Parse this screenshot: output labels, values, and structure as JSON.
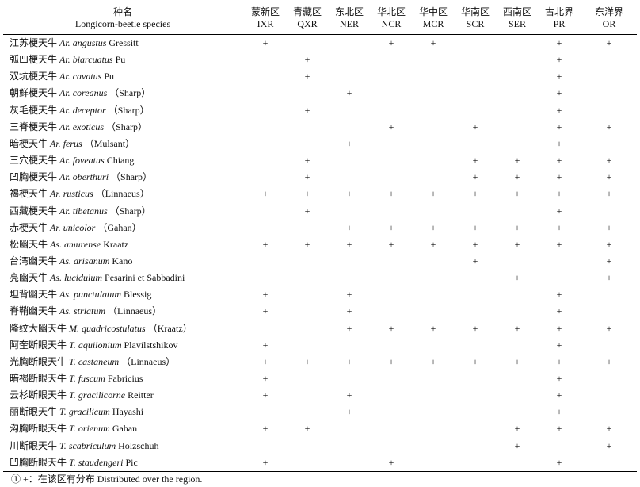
{
  "header": {
    "species_cn": "种名",
    "species_en": "Longicorn-beetle species",
    "regions": [
      {
        "cn": "蒙新区",
        "code": "IXR"
      },
      {
        "cn": "青藏区",
        "code": "QXR"
      },
      {
        "cn": "东北区",
        "code": "NER"
      },
      {
        "cn": "华北区",
        "code": "NCR"
      },
      {
        "cn": "华中区",
        "code": "MCR"
      },
      {
        "cn": "华南区",
        "code": "SCR"
      },
      {
        "cn": "西南区",
        "code": "SER"
      },
      {
        "cn": "古北界",
        "code": "PR"
      },
      {
        "cn": "东洋界",
        "code": "OR"
      }
    ]
  },
  "table": {
    "rows": [
      {
        "cn": "江苏梗天牛",
        "genus": "Ar.",
        "epithet": "angustus",
        "author": "Gressitt",
        "cells": [
          "+",
          null,
          null,
          "+",
          "+",
          null,
          null,
          "+",
          "+"
        ]
      },
      {
        "cn": "弧凹梗天牛",
        "genus": "Ar.",
        "epithet": "biarcuatus",
        "author": "Pu",
        "cells": [
          null,
          "+",
          null,
          null,
          null,
          null,
          null,
          "+",
          null
        ]
      },
      {
        "cn": "双坑梗天牛",
        "genus": "Ar.",
        "epithet": "cavatus",
        "author": "Pu",
        "cells": [
          null,
          "+",
          null,
          null,
          null,
          null,
          null,
          "+",
          null
        ]
      },
      {
        "cn": "朝鲜梗天牛",
        "genus": "Ar.",
        "epithet": "coreanus",
        "author": "（Sharp）",
        "cells": [
          null,
          null,
          "+",
          null,
          null,
          null,
          null,
          "+",
          null
        ]
      },
      {
        "cn": "灰毛梗天牛",
        "genus": "Ar.",
        "epithet": "deceptor",
        "author": "（Sharp）",
        "cells": [
          null,
          "+",
          null,
          null,
          null,
          null,
          null,
          "+",
          null
        ]
      },
      {
        "cn": "三脊梗天牛",
        "genus": "Ar.",
        "epithet": "exoticus",
        "author": "（Sharp）",
        "cells": [
          null,
          null,
          null,
          "+",
          null,
          "+",
          null,
          "+",
          "+"
        ]
      },
      {
        "cn": "暗梗天牛",
        "genus": "Ar.",
        "epithet": "ferus",
        "author": "（Mulsant）",
        "cells": [
          null,
          null,
          "+",
          null,
          null,
          null,
          null,
          "+",
          null
        ]
      },
      {
        "cn": "三穴梗天牛",
        "genus": "Ar.",
        "epithet": "foveatus",
        "author": "Chiang",
        "cells": [
          null,
          "+",
          null,
          null,
          null,
          "+",
          "+",
          "+",
          "+"
        ]
      },
      {
        "cn": "凹胸梗天牛",
        "genus": "Ar.",
        "epithet": "oberthuri",
        "author": "（Sharp）",
        "cells": [
          null,
          "+",
          null,
          null,
          null,
          "+",
          "+",
          "+",
          "+"
        ]
      },
      {
        "cn": "褐梗天牛",
        "genus": "Ar.",
        "epithet": "rusticus",
        "author": "（Linnaeus）",
        "cells": [
          "+",
          "+",
          "+",
          "+",
          "+",
          "+",
          "+",
          "+",
          "+"
        ]
      },
      {
        "cn": "西藏梗天牛",
        "genus": "Ar.",
        "epithet": "tibetanus",
        "author": "（Sharp）",
        "cells": [
          null,
          "+",
          null,
          null,
          null,
          null,
          null,
          "+",
          null
        ]
      },
      {
        "cn": "赤梗天牛",
        "genus": "Ar.",
        "epithet": "unicolor",
        "author": "（Gahan）",
        "cells": [
          null,
          null,
          "+",
          "+",
          "+",
          "+",
          "+",
          "+",
          "+"
        ]
      },
      {
        "cn": "松幽天牛",
        "genus": "As.",
        "epithet": "amurense",
        "author": "Kraatz",
        "cells": [
          "+",
          "+",
          "+",
          "+",
          "+",
          "+",
          "+",
          "+",
          "+"
        ]
      },
      {
        "cn": "台湾幽天牛",
        "genus": "As.",
        "epithet": "arisanum",
        "author": "Kano",
        "cells": [
          null,
          null,
          null,
          null,
          null,
          "+",
          null,
          null,
          "+"
        ]
      },
      {
        "cn": "亮幽天牛",
        "genus": "As.",
        "epithet": "lucidulum",
        "author": "Pesarini et Sabbadini",
        "cells": [
          null,
          null,
          null,
          null,
          null,
          null,
          "+",
          null,
          "+"
        ]
      },
      {
        "cn": "坦背幽天牛",
        "genus": "As.",
        "epithet": "punctulatum",
        "author": "Blessig",
        "cells": [
          "+",
          null,
          "+",
          null,
          null,
          null,
          null,
          "+",
          null
        ]
      },
      {
        "cn": "脊鞘幽天牛",
        "genus": "As.",
        "epithet": "striatum",
        "author": "（Linnaeus）",
        "cells": [
          "+",
          null,
          "+",
          null,
          null,
          null,
          null,
          "+",
          null
        ]
      },
      {
        "cn": "隆纹大幽天牛",
        "genus": "M.",
        "epithet": "quadricostulatus",
        "author": "（Kraatz）",
        "cells": [
          null,
          null,
          "+",
          "+",
          "+",
          "+",
          "+",
          "+",
          "+"
        ]
      },
      {
        "cn": "阿奎断眼天牛",
        "genus": "T.",
        "epithet": "aquilonium",
        "author": "Plavilstshikov",
        "cells": [
          "+",
          null,
          null,
          null,
          null,
          null,
          null,
          "+",
          null
        ]
      },
      {
        "cn": "光胸断眼天牛",
        "genus": "T.",
        "epithet": "castaneum",
        "author": "（Linnaeus）",
        "cells": [
          "+",
          "+",
          "+",
          "+",
          "+",
          "+",
          "+",
          "+",
          "+"
        ]
      },
      {
        "cn": "暗褐断眼天牛",
        "genus": "T.",
        "epithet": "fuscum",
        "author": "Fabricius",
        "cells": [
          "+",
          null,
          null,
          null,
          null,
          null,
          null,
          "+",
          null
        ]
      },
      {
        "cn": "云杉断眼天牛",
        "genus": "T.",
        "epithet": "gracilicorne",
        "author": "Reitter",
        "cells": [
          "+",
          null,
          "+",
          null,
          null,
          null,
          null,
          "+",
          null
        ]
      },
      {
        "cn": "丽断眼天牛",
        "genus": "T.",
        "epithet": "gracilicum",
        "author": "Hayashi",
        "cells": [
          null,
          null,
          "+",
          null,
          null,
          null,
          null,
          "+",
          null
        ]
      },
      {
        "cn": "沟胸断眼天牛",
        "genus": "T.",
        "epithet": "orienum",
        "author": "Gahan",
        "cells": [
          "+",
          "+",
          null,
          null,
          null,
          null,
          "+",
          "+",
          "+"
        ]
      },
      {
        "cn": "川断眼天牛",
        "genus": "T.",
        "epithet": "scabriculum",
        "author": "Holzschuh",
        "cells": [
          null,
          null,
          null,
          null,
          null,
          null,
          "+",
          null,
          "+"
        ]
      },
      {
        "cn": "凹胸断眼天牛",
        "genus": "T.",
        "epithet": "staudengeri",
        "author": "Pic",
        "cells": [
          "+",
          null,
          null,
          "+",
          null,
          null,
          null,
          "+",
          null
        ]
      }
    ]
  },
  "footnote": "① +：在该区有分布 Distributed over the region."
}
